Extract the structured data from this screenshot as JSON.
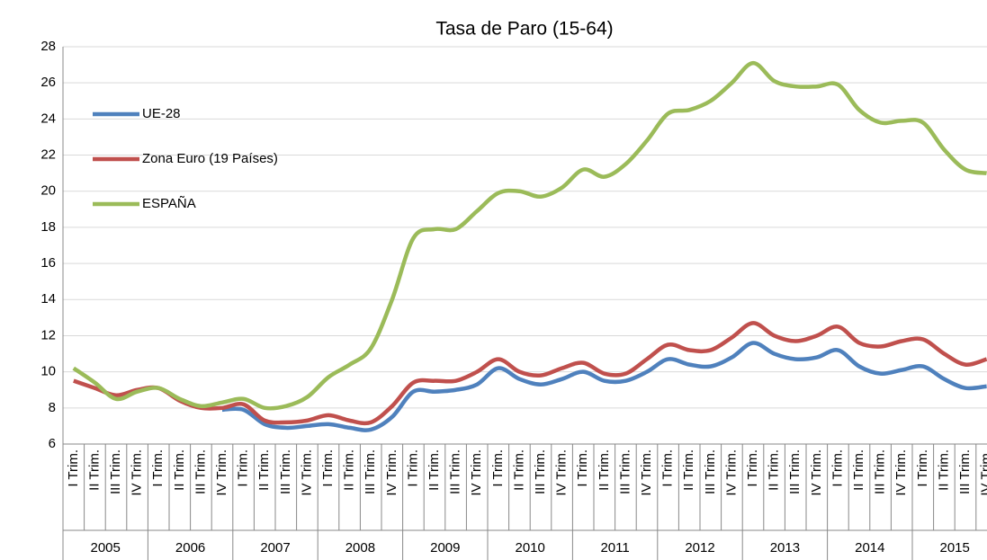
{
  "chart_data": {
    "type": "line",
    "title": "Tasa de Paro (15-64)",
    "categories": [
      "I Trim.",
      "II Trim.",
      "III Trim.",
      "IV Trim.",
      "I Trim.",
      "II Trim.",
      "III Trim.",
      "IV Trim.",
      "I Trim.",
      "II Trim.",
      "III Trim.",
      "IV Trim.",
      "I Trim.",
      "II Trim.",
      "III Trim.",
      "IV Trim.",
      "I Trim.",
      "II Trim.",
      "III Trim.",
      "IV Trim.",
      "I Trim.",
      "II Trim.",
      "III Trim.",
      "IV Trim.",
      "I Trim.",
      "II Trim.",
      "III Trim.",
      "IV Trim.",
      "I Trim.",
      "II Trim.",
      "III Trim.",
      "IV Trim.",
      "I Trim.",
      "II Trim.",
      "III Trim.",
      "IV Trim.",
      "I Trim.",
      "II Trim.",
      "III Trim.",
      "IV Trim.",
      "I Trim.",
      "II Trim.",
      "III Trim.",
      "IV Trim."
    ],
    "year_labels": [
      "2005",
      "2006",
      "2007",
      "2008",
      "2009",
      "2010",
      "2011",
      "2012",
      "2013",
      "2014",
      "2015"
    ],
    "series": [
      {
        "name": "UE-28",
        "color": "#4f81bd",
        "values": [
          null,
          null,
          null,
          null,
          null,
          null,
          null,
          7.9,
          7.9,
          7.1,
          6.9,
          7.0,
          7.1,
          6.9,
          6.8,
          7.5,
          8.9,
          8.9,
          9.0,
          9.3,
          10.2,
          9.6,
          9.3,
          9.6,
          10.0,
          9.5,
          9.5,
          10.0,
          10.7,
          10.4,
          10.3,
          10.8,
          11.6,
          11.0,
          10.7,
          10.8,
          11.2,
          10.3,
          9.9,
          10.1,
          10.3,
          9.6,
          9.1,
          9.2
        ]
      },
      {
        "name": "Zona Euro (19 Países)",
        "color": "#c0504d",
        "values": [
          9.5,
          9.1,
          8.7,
          9.0,
          9.1,
          8.4,
          8.0,
          8.0,
          8.2,
          7.3,
          7.2,
          7.3,
          7.6,
          7.3,
          7.2,
          8.1,
          9.4,
          9.5,
          9.5,
          10.0,
          10.7,
          10.0,
          9.8,
          10.2,
          10.5,
          9.9,
          9.9,
          10.7,
          11.5,
          11.2,
          11.2,
          11.9,
          12.7,
          12.0,
          11.7,
          12.0,
          12.5,
          11.6,
          11.4,
          11.7,
          11.8,
          11.0,
          10.4,
          10.7
        ]
      },
      {
        "name": "ESPAÑA",
        "color": "#9bbb59",
        "values": [
          10.2,
          9.4,
          8.5,
          8.9,
          9.1,
          8.5,
          8.1,
          8.3,
          8.5,
          8.0,
          8.1,
          8.6,
          9.7,
          10.4,
          11.3,
          14.0,
          17.4,
          17.9,
          17.9,
          18.9,
          19.9,
          20.0,
          19.7,
          20.2,
          21.2,
          20.8,
          21.5,
          22.8,
          24.3,
          24.5,
          25.0,
          26.0,
          27.1,
          26.1,
          25.8,
          25.8,
          25.9,
          24.5,
          23.8,
          23.9,
          23.8,
          22.3,
          21.2,
          21.0
        ]
      }
    ],
    "ylim": [
      6,
      28
    ],
    "yticks": [
      6,
      8,
      10,
      12,
      14,
      16,
      18,
      20,
      22,
      24,
      26,
      28
    ],
    "grid": true
  }
}
